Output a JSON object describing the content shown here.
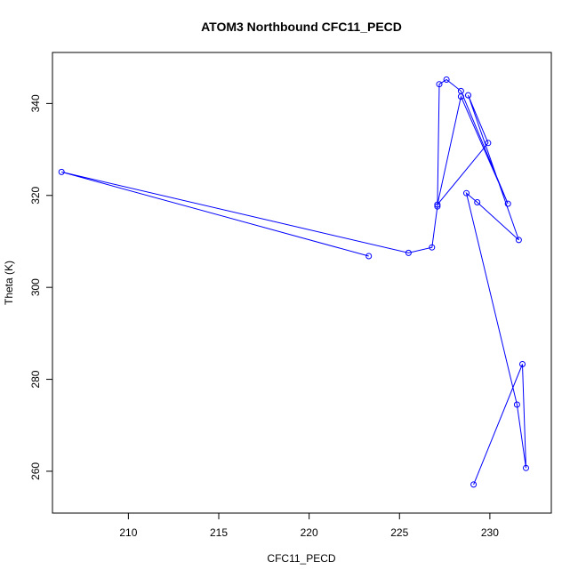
{
  "chart_data": {
    "type": "line",
    "title": "ATOM3 Northbound CFC11_PECD",
    "xlabel": "CFC11_PECD",
    "ylabel": "Theta (K)",
    "xlim": [
      205.8,
      233.4
    ],
    "ylim": [
      250.9,
      351.1
    ],
    "xticks": [
      210,
      215,
      220,
      225,
      230
    ],
    "yticks": [
      260,
      280,
      300,
      320,
      340
    ],
    "grid": false,
    "legend": "none",
    "series": [
      {
        "color": "#0000ff",
        "marker": "open-circle",
        "points": [
          {
            "x": 229.1,
            "y": 257.1
          },
          {
            "x": 231.8,
            "y": 283.3
          },
          {
            "x": 232.0,
            "y": 260.7
          },
          {
            "x": 231.5,
            "y": 274.5
          },
          {
            "x": 228.7,
            "y": 320.5
          },
          {
            "x": 229.3,
            "y": 318.5
          },
          {
            "x": 231.6,
            "y": 310.3
          },
          {
            "x": 228.8,
            "y": 341.8
          },
          {
            "x": 229.9,
            "y": 331.4
          },
          {
            "x": 227.1,
            "y": 318.0
          },
          {
            "x": 228.4,
            "y": 341.5
          },
          {
            "x": 231.0,
            "y": 318.2
          },
          {
            "x": 228.4,
            "y": 342.7
          },
          {
            "x": 227.6,
            "y": 345.2
          },
          {
            "x": 227.2,
            "y": 344.2
          },
          {
            "x": 227.1,
            "y": 317.6
          },
          {
            "x": 226.8,
            "y": 308.7
          },
          {
            "x": 225.5,
            "y": 307.5
          },
          {
            "x": 206.3,
            "y": 325.1
          },
          {
            "x": 223.3,
            "y": 306.8
          }
        ]
      }
    ]
  }
}
